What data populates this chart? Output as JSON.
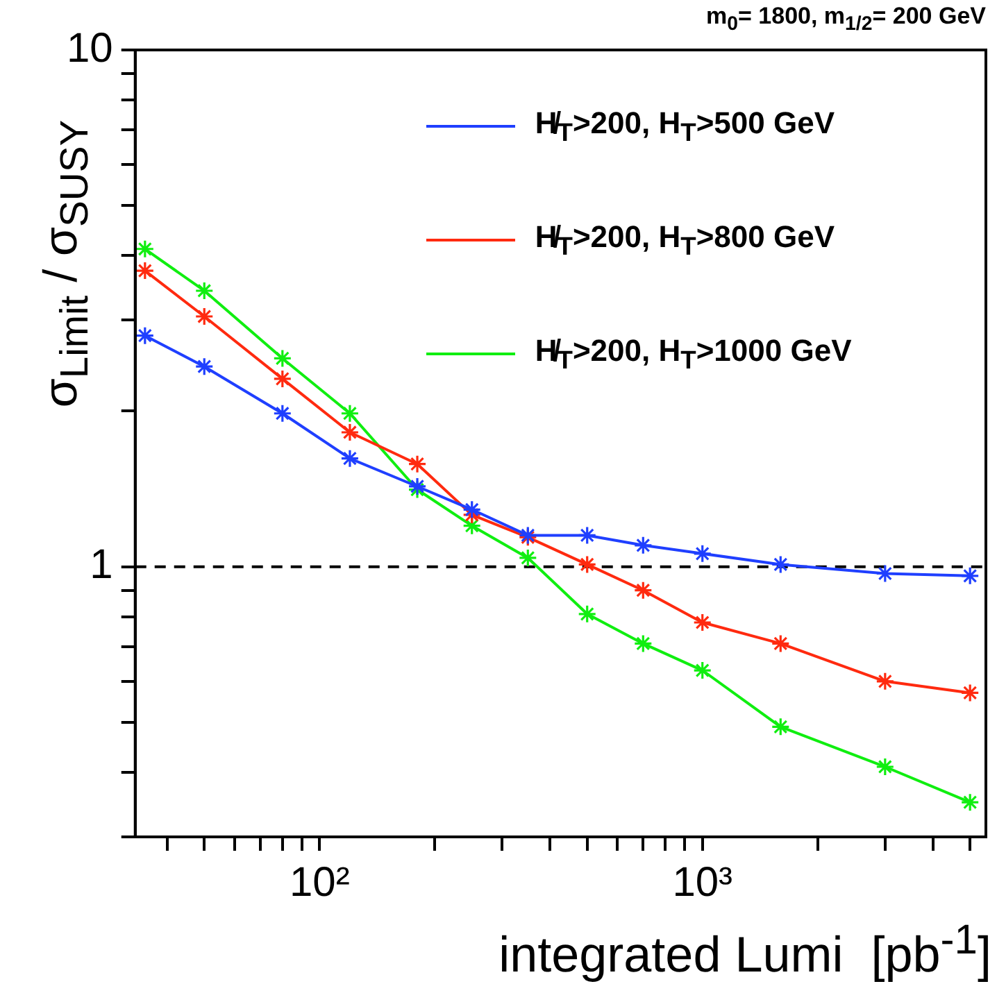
{
  "chart_data": {
    "type": "line",
    "title": "m$_{0}$= 1800, m$_{1/2}$= 200 GeV",
    "xlabel": "integrated Lumi  [pb$^{-1}$]",
    "ylabel": "σ$_{Limit}$ / σ$_{SUSY}$",
    "x": [
      35,
      50,
      80,
      120,
      180,
      250,
      350,
      500,
      700,
      1000,
      1600,
      3000,
      5000
    ],
    "series": [
      {
        "name": "H̸$_{T}$>200, H$_{T}$>500 GeV",
        "color": "#1f3fff",
        "values": [
          2.8,
          2.44,
          1.98,
          1.62,
          1.43,
          1.29,
          1.15,
          1.15,
          1.1,
          1.06,
          1.01,
          0.97,
          0.96
        ]
      },
      {
        "name": "H̸$_{T}$>200, H$_{T}$>800 GeV",
        "color": "#ff2a0f",
        "values": [
          3.74,
          3.05,
          2.31,
          1.82,
          1.58,
          1.26,
          1.14,
          1.01,
          0.9,
          0.78,
          0.71,
          0.6,
          0.57
        ]
      },
      {
        "name": "H̸$_{T}$>200, H$_{T}$>1000 GeV",
        "color": "#10ee10",
        "values": [
          4.12,
          3.42,
          2.53,
          1.98,
          1.41,
          1.2,
          1.04,
          0.81,
          0.71,
          0.63,
          0.49,
          0.41,
          0.35
        ]
      }
    ],
    "log": "xy",
    "xlim": [
      33,
      5500
    ],
    "ylim": [
      0.3,
      10
    ],
    "xticks": [
      {
        "value": 40,
        "label": null
      },
      {
        "value": 50,
        "label": null
      },
      {
        "value": 60,
        "label": null
      },
      {
        "value": 70,
        "label": null
      },
      {
        "value": 80,
        "label": null
      },
      {
        "value": 90,
        "label": null
      },
      {
        "value": 100,
        "label": "10²"
      },
      {
        "value": 200,
        "label": null
      },
      {
        "value": 300,
        "label": null
      },
      {
        "value": 400,
        "label": null
      },
      {
        "value": 500,
        "label": null
      },
      {
        "value": 600,
        "label": null
      },
      {
        "value": 700,
        "label": null
      },
      {
        "value": 800,
        "label": null
      },
      {
        "value": 900,
        "label": null
      },
      {
        "value": 1000,
        "label": "10³"
      },
      {
        "value": 2000,
        "label": null
      },
      {
        "value": 3000,
        "label": null
      },
      {
        "value": 4000,
        "label": null
      },
      {
        "value": 5000,
        "label": null
      }
    ],
    "yticks": [
      {
        "value": 0.3,
        "label": null
      },
      {
        "value": 0.4,
        "label": null
      },
      {
        "value": 0.5,
        "label": null
      },
      {
        "value": 0.6,
        "label": null
      },
      {
        "value": 0.7,
        "label": null
      },
      {
        "value": 0.8,
        "label": null
      },
      {
        "value": 0.9,
        "label": null
      },
      1,
      {
        "value": 2,
        "label": null
      },
      {
        "value": 3,
        "label": null
      },
      {
        "value": 4,
        "label": null
      },
      {
        "value": 5,
        "label": null
      },
      {
        "value": 6,
        "label": null
      },
      {
        "value": 7,
        "label": null
      },
      {
        "value": 8,
        "label": null
      },
      {
        "value": 9,
        "label": null
      },
      10
    ],
    "ref_lines": [
      {
        "axis": "y",
        "value": 1,
        "color": "#000000",
        "line_style": "dashed"
      }
    ],
    "marker": "cross",
    "line_style": "solid",
    "legend": "top right"
  }
}
